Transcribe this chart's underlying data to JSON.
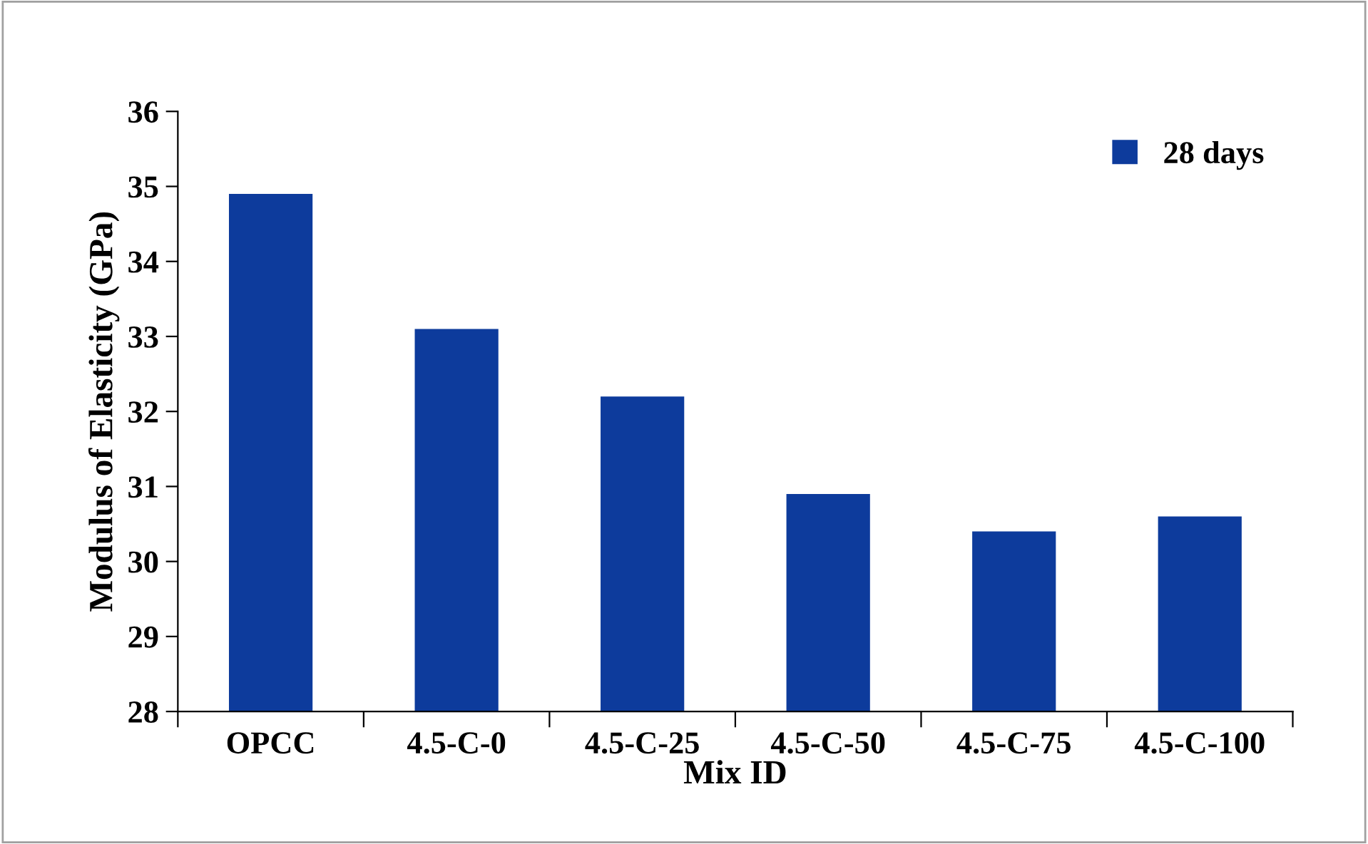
{
  "chart_data": {
    "type": "bar",
    "xlabel": "Mix ID",
    "ylabel": "Modulus of Elasticity (GPa)",
    "categories": [
      "OPCC",
      "4.5-C-0",
      "4.5-C-25",
      "4.5-C-50",
      "4.5-C-75",
      "4.5-C-100"
    ],
    "series": [
      {
        "name": "28 days",
        "color": "#0d3b9c",
        "values": [
          34.9,
          33.1,
          32.2,
          30.9,
          30.4,
          30.6
        ]
      }
    ],
    "ylim": [
      28,
      36
    ],
    "yticks": [
      28,
      29,
      30,
      31,
      32,
      33,
      34,
      35,
      36
    ],
    "grid": false,
    "legend": "top right"
  }
}
